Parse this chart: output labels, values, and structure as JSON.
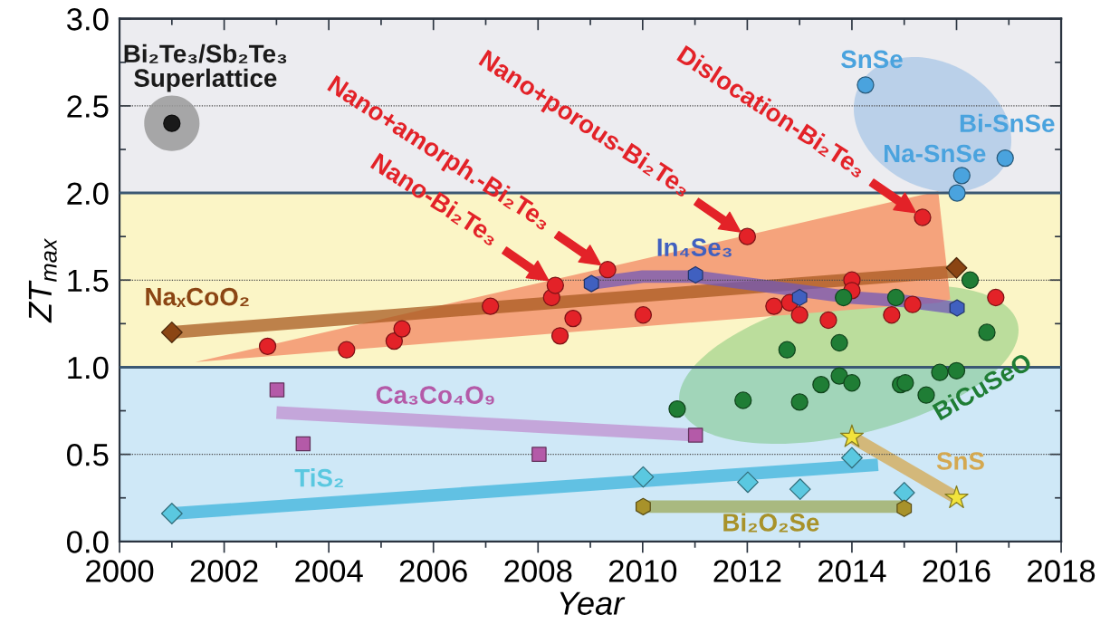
{
  "chart_data": {
    "type": "scatter",
    "xlabel": "Year",
    "ylabel": "ZT$_{max}$",
    "xlim": [
      2000,
      2018
    ],
    "xticks": [
      2000,
      {
        "value": 2001,
        "label": null
      },
      2002,
      {
        "value": 2003,
        "label": null
      },
      2004,
      {
        "value": 2005,
        "label": null
      },
      2006,
      {
        "value": 2007,
        "label": null
      },
      2008,
      {
        "value": 2009,
        "label": null
      },
      2010,
      {
        "value": 2011,
        "label": null
      },
      2012,
      {
        "value": 2013,
        "label": null
      },
      2014,
      {
        "value": 2015,
        "label": null
      },
      2016,
      {
        "value": 2017,
        "label": null
      },
      2018
    ],
    "ylim": [
      0,
      3
    ],
    "yticks": [
      {
        "value": 0,
        "label": "0.0"
      },
      {
        "value": 0.25,
        "label": null
      },
      {
        "value": 0.5,
        "label": "0.5"
      },
      {
        "value": 0.75,
        "label": null
      },
      {
        "value": 1,
        "label": "1.0"
      },
      {
        "value": 1.25,
        "label": null
      },
      {
        "value": 1.5,
        "label": "1.5"
      },
      {
        "value": 1.75,
        "label": null
      },
      {
        "value": 2,
        "label": "2.0"
      },
      {
        "value": 2.25,
        "label": null
      },
      {
        "value": 2.5,
        "label": "2.5"
      },
      {
        "value": 2.75,
        "label": null
      },
      {
        "value": 3,
        "label": "3.0"
      }
    ],
    "bands": [
      {
        "axis": "y",
        "from": 0,
        "to": 1,
        "color": "#cfe8f7"
      },
      {
        "axis": "y",
        "from": 1,
        "to": 2,
        "color": "#fbf5c6"
      },
      {
        "axis": "y",
        "from": 2,
        "to": 3,
        "color": "#ececf0"
      }
    ],
    "ref_lines": [
      {
        "axis": "y",
        "value": 0.5,
        "color": "#4a4a4a",
        "line_style": "dotted"
      },
      {
        "axis": "y",
        "value": 1,
        "color": "#3b5873"
      },
      {
        "axis": "y",
        "value": 1.5,
        "color": "#4a4a4a",
        "line_style": "dotted"
      },
      {
        "axis": "y",
        "value": 2,
        "color": "#3b5873"
      },
      {
        "axis": "y",
        "value": 2.5,
        "color": "#4a4a4a",
        "line_style": "dotted"
      }
    ],
    "annotations": [
      {
        "text": "Nano-Bi₂Te₃",
        "x": 2008.33,
        "y": 1.47
      },
      {
        "text": "Nano+amorph.-Bi₂Te₃",
        "x": 2009.33,
        "y": 1.56
      },
      {
        "text": "Nano+porous-Bi₂Te₃",
        "x": 2012.0,
        "y": 1.75
      },
      {
        "text": "Dislocation-Bi₂Te₃",
        "x": 2015.35,
        "y": 1.86
      }
    ],
    "series": [
      {
        "type": "line",
        "x": [
          2001.45,
          2015.65,
          2015.88
        ],
        "values": [
          null,
          null,
          null
        ],
        "lower": [
          1.03,
          1.37,
          1.39
        ],
        "upper": [
          1.03,
          2.01,
          1.39
        ],
        "color": "#f5a37c"
      },
      {
        "marker": "circle",
        "color": "#e32228",
        "x": [
          2002.83,
          2004.34,
          2005.25,
          2005.4,
          2007.09,
          2008.26,
          2008.33,
          2008.42,
          2008.67,
          2009.33,
          2010.01,
          2012.0,
          2012.51,
          2012.81,
          2013.0,
          2013.55,
          2014.0,
          2014.0,
          2014.76,
          2015.16,
          2015.35,
          2016.75
        ],
        "values": [
          1.12,
          1.1,
          1.15,
          1.22,
          1.35,
          1.4,
          1.47,
          1.18,
          1.28,
          1.56,
          1.3,
          1.75,
          1.35,
          1.37,
          1.3,
          1.27,
          1.5,
          1.44,
          1.3,
          1.36,
          1.86,
          1.4
        ]
      },
      {
        "name": "Bi₂Te₃/Sb₂Te₃\nSuperlattice",
        "marker": "circle",
        "color": "#1a1a1a",
        "x": [
          2001.0
        ],
        "values": [
          2.4
        ]
      },
      {
        "type": "line",
        "x": [
          2001.0,
          2016.0
        ],
        "values": [
          1.2,
          1.55
        ],
        "color": "#a85a20"
      },
      {
        "name": "NaₓCoO₂",
        "marker": "diamond",
        "color": "#8b4513",
        "x": [
          2001.0,
          2016.0
        ],
        "values": [
          1.2,
          1.57
        ]
      },
      {
        "type": "line",
        "x": [
          2009,
          2010,
          2011,
          2012,
          2013,
          2014,
          2015,
          2016
        ],
        "values": [
          1.48,
          1.52,
          1.52,
          1.48,
          1.44,
          1.4,
          1.38,
          1.34
        ],
        "color": "#7058b8"
      },
      {
        "name": "In₄Se₃",
        "color": "#4060c0",
        "x": [
          2009.02,
          2011.01,
          2013.0,
          2016.01
        ],
        "values": [
          1.48,
          1.53,
          1.4,
          1.34
        ]
      },
      {
        "type": "line",
        "x": [
          2003.0,
          2011.0
        ],
        "values": [
          0.74,
          0.61
        ],
        "color": "#c090d0"
      },
      {
        "name": "Ca₃Co₄O₉",
        "marker": "square",
        "color": "#b45aa8",
        "x": [
          2003.01,
          2003.51,
          2008.02,
          2011.01
        ],
        "values": [
          0.87,
          0.56,
          0.5,
          0.61
        ]
      },
      {
        "type": "line",
        "x": [
          2001.0,
          2014.5
        ],
        "values": [
          0.16,
          0.44
        ],
        "color": "#3cb4dc"
      },
      {
        "name": "TiS₂",
        "marker": "diamond",
        "color": "#5ac8e0",
        "x": [
          2001.0,
          2010.01,
          2012.01,
          2013.01,
          2014.0,
          2015.0
        ],
        "values": [
          0.16,
          0.37,
          0.34,
          0.3,
          0.48,
          0.28
        ]
      },
      {
        "type": "line",
        "x": [
          2010.0,
          2015.0
        ],
        "values": [
          0.2,
          0.2
        ],
        "color": "#9caa58"
      },
      {
        "name": "Bi₂O₂Se",
        "color": "#a8922a",
        "x": [
          2010.01,
          2015.0
        ],
        "values": [
          0.2,
          0.19
        ]
      },
      {
        "type": "line",
        "x": [
          2014.0,
          2016.0
        ],
        "values": [
          0.6,
          0.25
        ],
        "color": "#d4a850"
      },
      {
        "name": "SnS",
        "marker": "star",
        "color": "#f2e33c",
        "x": [
          2014.0,
          2016.0
        ],
        "values": [
          0.6,
          0.25
        ]
      },
      {
        "name": "BiCuSeO",
        "marker": "circle",
        "color": "#1f7d35",
        "x": [
          2010.66,
          2011.92,
          2012.76,
          2013.0,
          2013.41,
          2013.76,
          2013.76,
          2013.84,
          2014.0,
          2014.84,
          2014.93,
          2015.02,
          2015.42,
          2015.68,
          2016.0,
          2016.26,
          2016.58
        ],
        "values": [
          0.76,
          0.81,
          1.1,
          0.8,
          0.9,
          0.95,
          1.14,
          1.4,
          0.91,
          1.4,
          0.9,
          0.91,
          0.84,
          0.97,
          0.98,
          1.5,
          1.2
        ]
      },
      {
        "name": "SnSe",
        "marker": "circle",
        "color": "#4aa3de",
        "x": [
          2014.26
        ],
        "values": [
          2.62
        ]
      },
      {
        "name": "Na-SnSe",
        "marker": "circle",
        "color": "#4aa3de",
        "x": [
          2016.1,
          2016.01
        ],
        "values": [
          2.1,
          2.0
        ]
      },
      {
        "name": "Bi-SnSe",
        "marker": "circle",
        "color": "#4aa3de",
        "x": [
          2016.93
        ],
        "values": [
          2.2
        ]
      }
    ]
  }
}
